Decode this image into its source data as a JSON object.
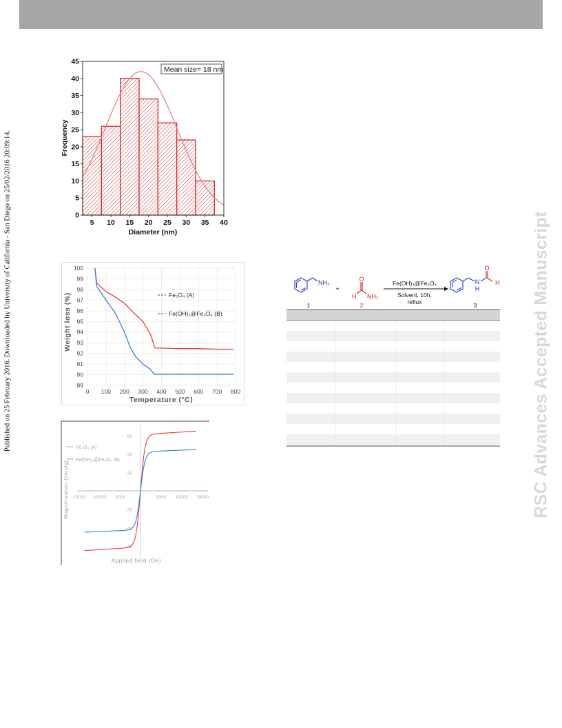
{
  "page": {
    "side_note": "Published on 25 February 2016. Downloaded by University of California - San Diego on 25/02/2016 20:09:14.",
    "watermark": "RSC Advances Accepted Manuscript"
  },
  "histogram": {
    "legend": "Mean size= 18 nm",
    "xlabel": "Diameter (nm)",
    "ylabel": "Frequency",
    "xticks": [
      "5",
      "10",
      "15",
      "20",
      "25",
      "30",
      "35",
      "40"
    ],
    "yticks": [
      "0",
      "5",
      "10",
      "15",
      "20",
      "25",
      "30",
      "35",
      "40",
      "45"
    ],
    "bar_color": "#d42b2b"
  },
  "tga": {
    "xlabel": "Temperature (°C)",
    "ylabel": "Weight loss (%)",
    "xticks": [
      "0",
      "100",
      "200",
      "300",
      "400",
      "500",
      "600",
      "700",
      "800"
    ],
    "yticks": [
      "89",
      "90",
      "91",
      "92",
      "93",
      "94",
      "95",
      "96",
      "97",
      "98",
      "99",
      "100"
    ],
    "legend_a": "Fe₃O₄ (A)",
    "legend_b": "Fe(OH)₃@Fe₃O₄ (B)",
    "color_a": "#e8383d",
    "color_b": "#2d7fd3"
  },
  "vsm": {
    "xlabel": "Applied field (Oe)",
    "ylabel": "Magnetization (emu/g)",
    "xticks": [
      "-15000",
      "-10000",
      "-5000",
      "5000",
      "10000",
      "15000"
    ],
    "yticks": [
      "60",
      "40",
      "20",
      "-20",
      "-40",
      "-60"
    ],
    "legend_a": "Fe₃O₄ (A)",
    "legend_b": "Fe(OH)₃@Fe₃O₄ (B)",
    "color_a": "#e8383d",
    "color_b": "#2d7fd3"
  },
  "scheme": {
    "reagent_1_group": "NH₂",
    "reagent_2_o": "O",
    "reagent_2_h": "H",
    "reagent_2_nh2": "NH₂",
    "plus": "+",
    "catalyst": "Fe(OH)₃@Fe₃O₄",
    "conditions_1": "Solvent, 10h,",
    "conditions_2": "reflux",
    "product_o": "O",
    "product_nh": "N",
    "product_h_top": "H",
    "product_h": "H",
    "label_1": "1",
    "label_2": "2",
    "label_3": "3",
    "blue": "#2233c8",
    "red": "#cc1f1f"
  },
  "chart_data": [
    {
      "type": "bar",
      "xlabel": "Diameter (nm)",
      "ylabel": "Frequency",
      "categories": [
        "5",
        "10",
        "15",
        "20",
        "25",
        "30",
        "35"
      ],
      "values": [
        23,
        26,
        40,
        34,
        27,
        22,
        10
      ],
      "xlim": [
        2.5,
        40
      ],
      "ylim": [
        0,
        45
      ],
      "fit": {
        "type": "gaussian",
        "mean": 18,
        "peak": 42,
        "sigma": 9.5
      }
    },
    {
      "type": "line",
      "xlabel": "Temperature (°C)",
      "ylabel": "Weight loss (%)",
      "xlim": [
        0,
        800
      ],
      "ylim": [
        89,
        100
      ],
      "grid": true,
      "series": [
        {
          "name": "Fe₃O₄ (A)",
          "x": [
            40,
            50,
            100,
            150,
            200,
            250,
            300,
            340,
            365,
            400,
            500,
            600,
            700,
            790
          ],
          "y": [
            100,
            98.6,
            97.8,
            97.3,
            96.7,
            95.8,
            95.0,
            93.8,
            92.5,
            92.5,
            92.45,
            92.45,
            92.4,
            92.4
          ]
        },
        {
          "name": "Fe(OH)₃@Fe₃O₄ (B)",
          "x": [
            40,
            50,
            100,
            150,
            200,
            230,
            260,
            300,
            340,
            360,
            400,
            500,
            600,
            700,
            790
          ],
          "y": [
            100,
            98.3,
            97.0,
            95.8,
            94.0,
            92.6,
            91.7,
            91.0,
            90.5,
            90.05,
            90.05,
            90.05,
            90.05,
            90.05,
            90.05
          ]
        }
      ]
    },
    {
      "type": "line",
      "xlabel": "Applied field (Oe)",
      "ylabel": "Magnetization (emu/g)",
      "xlim": [
        -15000,
        15000
      ],
      "ylim": [
        -60,
        60
      ],
      "series": [
        {
          "name": "Fe₃O₄ (A)",
          "ms": 65
        },
        {
          "name": "Fe(OH)₃@Fe₃O₄ (B)",
          "ms": 45
        }
      ]
    }
  ]
}
